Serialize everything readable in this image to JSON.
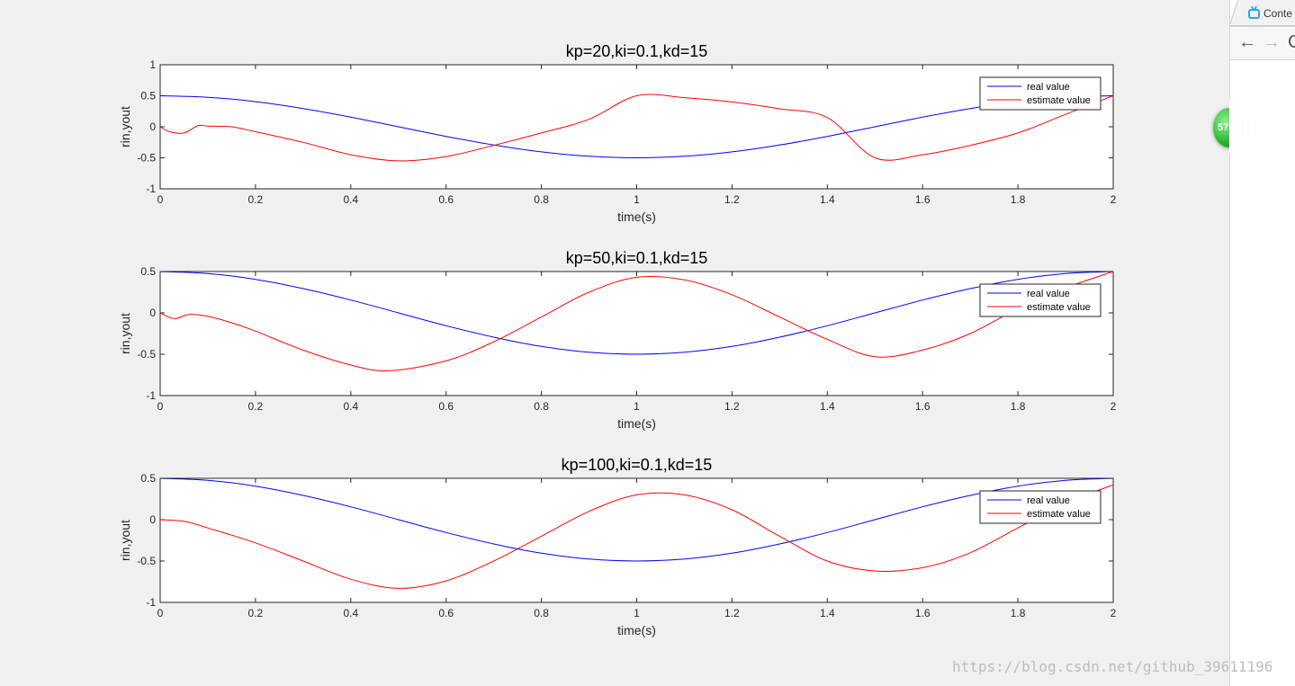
{
  "chart_data": [
    {
      "type": "line",
      "title": "kp=20,ki=0.1,kd=15",
      "xlabel": "time(s)",
      "ylabel": "rin,yout",
      "xlim": [
        0,
        2
      ],
      "ylim": [
        -1,
        1
      ],
      "xticks": [
        "0",
        "0.2",
        "0.4",
        "0.6",
        "0.8",
        "1",
        "1.2",
        "1.4",
        "1.6",
        "1.8",
        "2"
      ],
      "yticks": [
        "-1",
        "-0.5",
        "0",
        "0.5",
        "1"
      ],
      "legend_position": "top-right",
      "grid": false,
      "series": [
        {
          "name": "real value",
          "color": "#0000ff",
          "x": [
            0,
            0.1,
            0.2,
            0.3,
            0.4,
            0.5,
            0.6,
            0.7,
            0.8,
            0.9,
            1.0,
            1.1,
            1.2,
            1.3,
            1.4,
            1.5,
            1.6,
            1.7,
            1.8,
            1.9,
            2.0
          ],
          "y": [
            0.5,
            0.476,
            0.405,
            0.294,
            0.155,
            0,
            -0.155,
            -0.294,
            -0.405,
            -0.476,
            -0.5,
            -0.476,
            -0.405,
            -0.294,
            -0.155,
            0,
            0.155,
            0.294,
            0.405,
            0.476,
            0.5
          ]
        },
        {
          "name": "estimate value",
          "color": "#ff0000",
          "x": [
            0,
            0.02,
            0.05,
            0.08,
            0.1,
            0.15,
            0.2,
            0.3,
            0.4,
            0.5,
            0.6,
            0.7,
            0.8,
            0.9,
            1.0,
            1.1,
            1.2,
            1.3,
            1.4,
            1.5,
            1.6,
            1.7,
            1.8,
            1.9,
            2.0
          ],
          "y": [
            0,
            -0.08,
            -0.1,
            0.02,
            0.01,
            0,
            -0.08,
            -0.25,
            -0.45,
            -0.55,
            -0.48,
            -0.3,
            -0.1,
            0.12,
            0.5,
            0.47,
            0.4,
            0.29,
            0.15,
            -0.5,
            -0.45,
            -0.3,
            -0.1,
            0.2,
            0.5
          ]
        }
      ]
    },
    {
      "type": "line",
      "title": "kp=50,ki=0.1,kd=15",
      "xlabel": "time(s)",
      "ylabel": "rin,yout",
      "xlim": [
        0,
        2
      ],
      "ylim": [
        -1,
        0.5
      ],
      "xticks": [
        "0",
        "0.2",
        "0.4",
        "0.6",
        "0.8",
        "1",
        "1.2",
        "1.4",
        "1.6",
        "1.8",
        "2"
      ],
      "yticks": [
        "-1",
        "-0.5",
        "0",
        "0.5"
      ],
      "legend_position": "top-right",
      "grid": false,
      "series": [
        {
          "name": "real value",
          "color": "#0000ff",
          "x": [
            0,
            0.1,
            0.2,
            0.3,
            0.4,
            0.5,
            0.6,
            0.7,
            0.8,
            0.9,
            1.0,
            1.1,
            1.2,
            1.3,
            1.4,
            1.5,
            1.6,
            1.7,
            1.8,
            1.9,
            2.0
          ],
          "y": [
            0.5,
            0.476,
            0.405,
            0.294,
            0.155,
            0,
            -0.155,
            -0.294,
            -0.405,
            -0.476,
            -0.5,
            -0.476,
            -0.405,
            -0.294,
            -0.155,
            0,
            0.155,
            0.294,
            0.405,
            0.476,
            0.5
          ]
        },
        {
          "name": "estimate value",
          "color": "#ff0000",
          "x": [
            0,
            0.03,
            0.06,
            0.1,
            0.15,
            0.2,
            0.3,
            0.4,
            0.48,
            0.6,
            0.7,
            0.8,
            0.9,
            1.0,
            1.1,
            1.2,
            1.3,
            1.4,
            1.5,
            1.6,
            1.7,
            1.8,
            1.9,
            2.0
          ],
          "y": [
            0,
            -0.07,
            -0.02,
            -0.04,
            -0.12,
            -0.22,
            -0.45,
            -0.63,
            -0.7,
            -0.58,
            -0.35,
            -0.05,
            0.25,
            0.43,
            0.4,
            0.22,
            -0.05,
            -0.32,
            -0.53,
            -0.45,
            -0.25,
            0.05,
            0.3,
            0.5
          ]
        }
      ]
    },
    {
      "type": "line",
      "title": "kp=100,ki=0.1,kd=15",
      "xlabel": "time(s)",
      "ylabel": "rin,yout",
      "xlim": [
        0,
        2
      ],
      "ylim": [
        -1,
        0.5
      ],
      "xticks": [
        "0",
        "0.2",
        "0.4",
        "0.6",
        "0.8",
        "1",
        "1.2",
        "1.4",
        "1.6",
        "1.8",
        "2"
      ],
      "yticks": [
        "-1",
        "-0.5",
        "0",
        "0.5"
      ],
      "legend_position": "top-right",
      "grid": false,
      "series": [
        {
          "name": "real value",
          "color": "#0000ff",
          "x": [
            0,
            0.1,
            0.2,
            0.3,
            0.4,
            0.5,
            0.6,
            0.7,
            0.8,
            0.9,
            1.0,
            1.1,
            1.2,
            1.3,
            1.4,
            1.5,
            1.6,
            1.7,
            1.8,
            1.9,
            2.0
          ],
          "y": [
            0.5,
            0.476,
            0.405,
            0.294,
            0.155,
            0,
            -0.155,
            -0.294,
            -0.405,
            -0.476,
            -0.5,
            -0.476,
            -0.405,
            -0.294,
            -0.155,
            0,
            0.155,
            0.294,
            0.405,
            0.476,
            0.5
          ]
        },
        {
          "name": "estimate value",
          "color": "#ff0000",
          "x": [
            0,
            0.05,
            0.1,
            0.2,
            0.3,
            0.4,
            0.5,
            0.6,
            0.7,
            0.8,
            0.9,
            1.0,
            1.1,
            1.2,
            1.3,
            1.4,
            1.5,
            1.6,
            1.7,
            1.8,
            1.9,
            2.0
          ],
          "y": [
            0,
            -0.02,
            -0.1,
            -0.28,
            -0.5,
            -0.72,
            -0.83,
            -0.74,
            -0.5,
            -0.2,
            0.1,
            0.3,
            0.3,
            0.12,
            -0.2,
            -0.5,
            -0.62,
            -0.58,
            -0.4,
            -0.1,
            0.2,
            0.42
          ]
        }
      ]
    }
  ],
  "browser": {
    "tab_label": "Conte",
    "back_glyph": "←",
    "forward_glyph": "→",
    "reload_glyph": "C"
  },
  "float_badge_text": "57",
  "watermark_text": "https://blog.csdn.net/github_39611196"
}
